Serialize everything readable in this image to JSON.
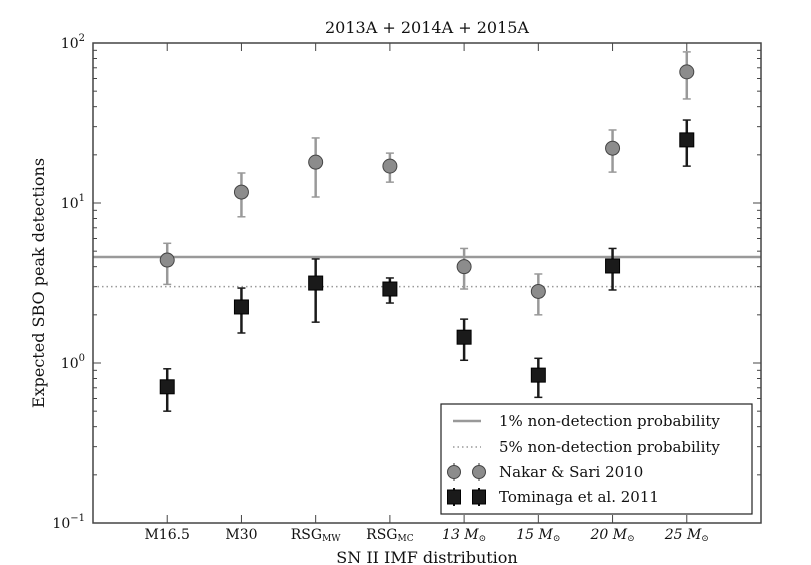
{
  "chart_data": {
    "type": "scatter",
    "title": "2013A + 2014A + 2015A",
    "xlabel": "SN II IMF distribution",
    "ylabel": "Expected SBO peak detections",
    "yscale": "log",
    "ylim": [
      0.1,
      100
    ],
    "xlim": [
      0,
      9
    ],
    "categories": [
      {
        "main": "M16.5",
        "sub": ""
      },
      {
        "main": "M30",
        "sub": ""
      },
      {
        "main": "RSG",
        "sub": "MW"
      },
      {
        "main": "RSG",
        "sub": "MC"
      },
      {
        "main": "13 M",
        "sub": "⊙"
      },
      {
        "main": "15 M",
        "sub": "⊙"
      },
      {
        "main": "20 M",
        "sub": "⊙"
      },
      {
        "main": "25 M",
        "sub": "⊙"
      }
    ],
    "yticks": [
      {
        "value": 0.1,
        "base": "10",
        "exp": "−1"
      },
      {
        "value": 1,
        "base": "10",
        "exp": "0"
      },
      {
        "value": 10,
        "base": "10",
        "exp": "1"
      },
      {
        "value": 100,
        "base": "10",
        "exp": "2"
      }
    ],
    "series": [
      {
        "name": "Nakar & Sari 2010",
        "marker": "circle",
        "color": "#8c8c8c",
        "edge": "#444444",
        "values": [
          4.4,
          11.7,
          18.0,
          17.0,
          4.0,
          2.8,
          22.0,
          66.0
        ],
        "upper": [
          5.6,
          15.4,
          25.5,
          20.5,
          5.2,
          3.6,
          28.6,
          88.0
        ],
        "lower": [
          3.1,
          8.2,
          10.9,
          13.5,
          2.9,
          2.0,
          15.6,
          44.7
        ]
      },
      {
        "name": "Tominaga et al. 2011",
        "marker": "square",
        "color": "#1a1a1a",
        "edge": "#000000",
        "values": [
          0.71,
          2.24,
          3.16,
          2.9,
          1.45,
          0.84,
          4.04,
          24.8
        ],
        "upper": [
          0.92,
          2.94,
          4.47,
          3.4,
          1.88,
          1.07,
          5.2,
          33.0
        ],
        "lower": [
          0.5,
          1.54,
          1.8,
          2.37,
          1.04,
          0.61,
          2.86,
          17.0
        ]
      }
    ],
    "hlines": [
      {
        "name": "1% non-detection probability",
        "value": 4.6,
        "style": "solid",
        "color": "#999999"
      },
      {
        "name": "5% non-detection probability",
        "value": 3.0,
        "style": "dotted",
        "color": "#999999"
      }
    ],
    "legend": {
      "placement": "lower-right"
    }
  }
}
